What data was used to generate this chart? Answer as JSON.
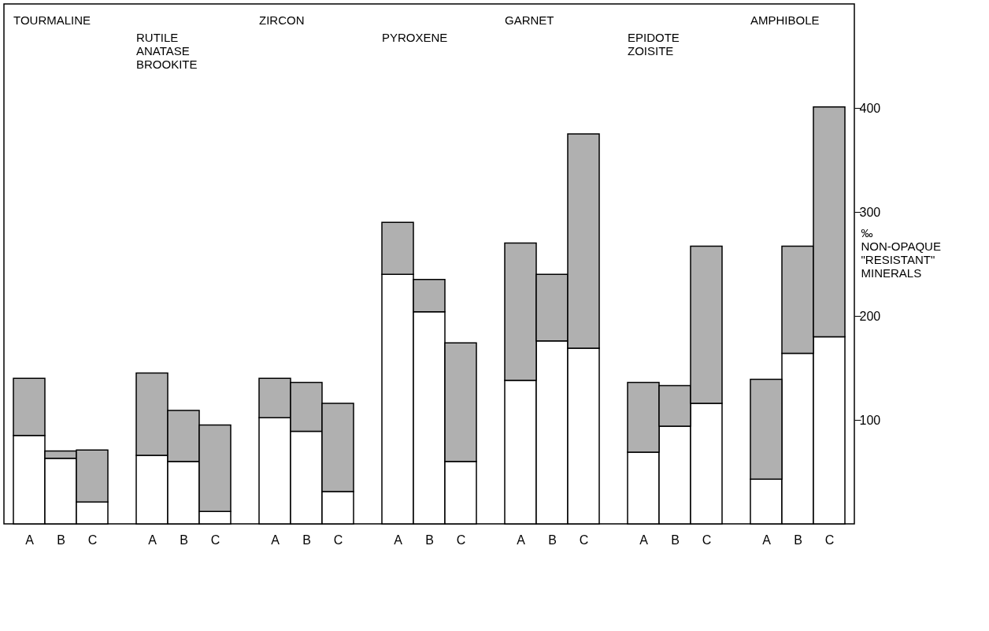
{
  "chart_data": {
    "type": "bar",
    "categories": [
      "A",
      "B",
      "C",
      "A",
      "B",
      "C",
      "A",
      "B",
      "C",
      "A",
      "B",
      "C",
      "A",
      "B",
      "C",
      "A",
      "B",
      "C",
      "A",
      "B",
      "C"
    ],
    "stacked": true,
    "ylim": [
      0,
      500
    ],
    "yticks": [
      100,
      200,
      300,
      400
    ],
    "ylabel": "‰\nNON-OPAQUE\n\"RESISTANT\"\nMINERALS",
    "series": [
      {
        "color": "#ffffff",
        "values": [
          85,
          63,
          21,
          66,
          60,
          12,
          102,
          89,
          31,
          240,
          204,
          60,
          138,
          176,
          169,
          69,
          94,
          116,
          43,
          164,
          180
        ]
      },
      {
        "color": "#b0b0b0",
        "values": [
          55,
          7,
          50,
          79,
          49,
          83,
          38,
          47,
          85,
          50,
          31,
          114,
          132,
          64,
          206,
          67,
          39,
          151,
          96,
          103,
          221
        ]
      }
    ],
    "annotations": [
      "TOURMALINE",
      "RUTILE\nANATASE\nBROOKITE",
      "ZIRCON",
      "PYROXENE",
      "GARNET",
      "EPIDOTE\nZOISITE",
      "AMPHIBOLE"
    ]
  }
}
